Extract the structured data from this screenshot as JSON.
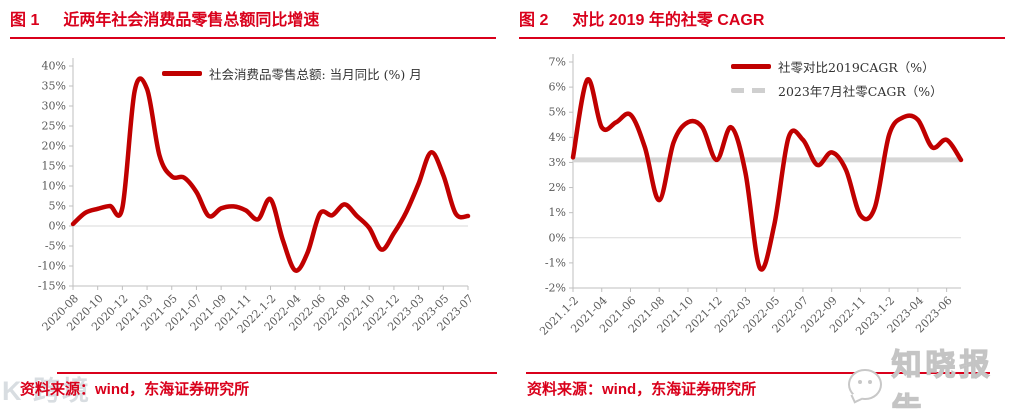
{
  "colors": {
    "accent_red": "#D9001B",
    "line_red": "#C00000",
    "reference_gray": "#D6D6D6",
    "axis_gray": "#BFBFBF",
    "grid_gray": "#DADADA",
    "tick_text": "#595959"
  },
  "watermarks": {
    "left_text": "K 跨境",
    "right_text": "知晓报告",
    "right_icon": "wechat-chat-icon"
  },
  "chart_data": [
    {
      "type": "line",
      "figure_label": "图 1",
      "title": "近两年社会消费品零售总额同比增速",
      "source": "资料来源：wind，东海证券研究所",
      "legend": [
        {
          "label": "社会消费品零售总额: 当月同比 (%) 月",
          "style": "solid",
          "color": "#C00000"
        }
      ],
      "legend_position": "top-center",
      "grid": "zero-line-only",
      "ylim": [
        -15,
        40
      ],
      "y_ticks": [
        "40%",
        "35%",
        "30%",
        "25%",
        "20%",
        "15%",
        "10%",
        "5%",
        "0%",
        "-5%",
        "-10%",
        "-15%"
      ],
      "x_tick_every": 2,
      "x_tick_labels": [
        "2020-08",
        "2020-10",
        "2020-12",
        "2021-03",
        "2021-05",
        "2021-07",
        "2021-09",
        "2021-11",
        "2022.1-2",
        "2022-04",
        "2022-06",
        "2022-08",
        "2022-10",
        "2022-12",
        "2023-03",
        "2023-05",
        "2023-07"
      ],
      "categories": [
        "2020-08",
        "2020-09",
        "2020-10",
        "2020-11",
        "2020-12",
        "2021.1-2",
        "2021-03",
        "2021-04",
        "2021-05",
        "2021-06",
        "2021-07",
        "2021-08",
        "2021-09",
        "2021-10",
        "2021-11",
        "2021-12",
        "2022.1-2",
        "2022-03",
        "2022-04",
        "2022-05",
        "2022-06",
        "2022-07",
        "2022-08",
        "2022-09",
        "2022-10",
        "2022-11",
        "2022-12",
        "2023.1-2",
        "2023-03",
        "2023-04",
        "2023-05",
        "2023-06",
        "2023-07"
      ],
      "values": [
        0.5,
        3.3,
        4.3,
        5.0,
        4.6,
        33.8,
        34.2,
        17.7,
        12.4,
        12.1,
        8.5,
        2.5,
        4.4,
        4.9,
        3.9,
        1.7,
        6.7,
        -3.5,
        -11.1,
        -6.7,
        3.1,
        2.7,
        5.4,
        2.5,
        -0.5,
        -5.9,
        -1.8,
        3.5,
        10.6,
        18.4,
        12.7,
        3.1,
        2.5
      ],
      "line_color": "#C00000"
    },
    {
      "type": "line",
      "figure_label": "图 2",
      "title": "对比 2019 年的社零 CAGR",
      "source": "资料来源：wind，东海证券研究所",
      "legend": [
        {
          "label": "社零对比2019CAGR（%）",
          "style": "solid",
          "color": "#C00000"
        },
        {
          "label": "2023年7月社零CAGR（%）",
          "style": "dashed",
          "color": "#CFCFCF"
        }
      ],
      "legend_position": "top-right",
      "grid": "zero-line-only",
      "ylim": [
        -2,
        7
      ],
      "y_ticks": [
        "7%",
        "6%",
        "5%",
        "4%",
        "3%",
        "2%",
        "1%",
        "0%",
        "-1%",
        "-2%"
      ],
      "x_tick_every": 2,
      "x_tick_labels": [
        "2021.1-2",
        "2021-04",
        "2021-06",
        "2021-08",
        "2021-10",
        "2021-12",
        "2022-03",
        "2022-05",
        "2022-07",
        "2022-09",
        "2022-11",
        "2023.1-2",
        "2023-04",
        "2023-06"
      ],
      "categories": [
        "2021.1-2",
        "2021-03",
        "2021-04",
        "2021-05",
        "2021-06",
        "2021-07",
        "2021-08",
        "2021-09",
        "2021-10",
        "2021-11",
        "2021-12",
        "2022.1-2",
        "2022-03",
        "2022-04",
        "2022-05",
        "2022-06",
        "2022-07",
        "2022-08",
        "2022-09",
        "2022-10",
        "2022-11",
        "2022-12",
        "2023.1-2",
        "2023-03",
        "2023-04",
        "2023-05",
        "2023-06",
        "2023-07"
      ],
      "series": [
        {
          "name": "社零对比2019CAGR（%）",
          "values": [
            3.2,
            6.3,
            4.4,
            4.6,
            4.9,
            3.6,
            1.5,
            3.8,
            4.6,
            4.4,
            3.1,
            4.4,
            2.6,
            -1.2,
            0.5,
            4.0,
            3.9,
            2.9,
            3.4,
            2.7,
            0.9,
            1.2,
            4.1,
            4.8,
            4.7,
            3.6,
            3.9,
            3.1
          ],
          "color": "#C00000"
        },
        {
          "name": "2023年7月社零CAGR（%）",
          "type": "reference-hline",
          "value": 3.1,
          "color": "#D6D6D6"
        }
      ],
      "line_color": "#C00000"
    }
  ]
}
